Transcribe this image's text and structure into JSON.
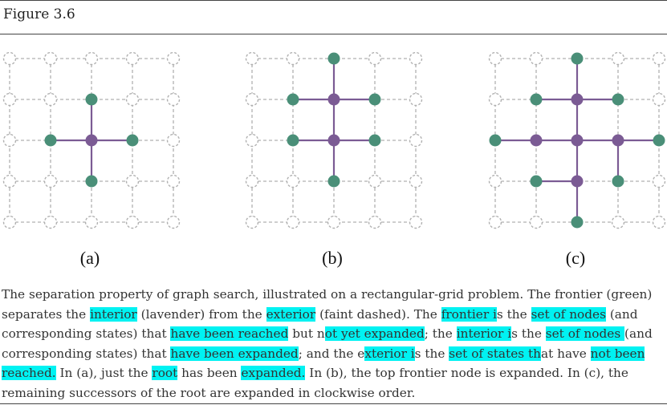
{
  "figure": {
    "title": "Figure 3.6",
    "panels": [
      {
        "label": "(a)",
        "reached_interior": [
          [
            2,
            2
          ]
        ],
        "frontier": [
          [
            2,
            1
          ],
          [
            1,
            2
          ],
          [
            3,
            2
          ],
          [
            2,
            3
          ]
        ],
        "edges": [
          [
            [
              2,
              2
            ],
            [
              2,
              1
            ]
          ],
          [
            [
              2,
              2
            ],
            [
              1,
              2
            ]
          ],
          [
            [
              2,
              2
            ],
            [
              3,
              2
            ]
          ],
          [
            [
              2,
              2
            ],
            [
              2,
              3
            ]
          ]
        ]
      },
      {
        "label": "(b)",
        "reached_interior": [
          [
            2,
            2
          ],
          [
            2,
            1
          ]
        ],
        "frontier": [
          [
            2,
            0
          ],
          [
            1,
            1
          ],
          [
            3,
            1
          ],
          [
            1,
            2
          ],
          [
            3,
            2
          ],
          [
            2,
            3
          ]
        ],
        "edges": [
          [
            [
              2,
              2
            ],
            [
              2,
              1
            ]
          ],
          [
            [
              2,
              2
            ],
            [
              1,
              2
            ]
          ],
          [
            [
              2,
              2
            ],
            [
              3,
              2
            ]
          ],
          [
            [
              2,
              2
            ],
            [
              2,
              3
            ]
          ],
          [
            [
              2,
              1
            ],
            [
              2,
              0
            ]
          ],
          [
            [
              2,
              1
            ],
            [
              1,
              1
            ]
          ],
          [
            [
              2,
              1
            ],
            [
              3,
              1
            ]
          ]
        ]
      },
      {
        "label": "(c)",
        "reached_interior": [
          [
            2,
            2
          ],
          [
            2,
            1
          ],
          [
            1,
            2
          ],
          [
            3,
            2
          ],
          [
            2,
            3
          ]
        ],
        "frontier": [
          [
            2,
            0
          ],
          [
            1,
            1
          ],
          [
            3,
            1
          ],
          [
            0,
            2
          ],
          [
            4,
            2
          ],
          [
            1,
            3
          ],
          [
            3,
            3
          ],
          [
            2,
            4
          ]
        ],
        "edges": [
          [
            [
              2,
              2
            ],
            [
              2,
              1
            ]
          ],
          [
            [
              2,
              2
            ],
            [
              1,
              2
            ]
          ],
          [
            [
              2,
              2
            ],
            [
              3,
              2
            ]
          ],
          [
            [
              2,
              2
            ],
            [
              2,
              3
            ]
          ],
          [
            [
              2,
              1
            ],
            [
              2,
              0
            ]
          ],
          [
            [
              2,
              1
            ],
            [
              1,
              1
            ]
          ],
          [
            [
              2,
              1
            ],
            [
              3,
              1
            ]
          ],
          [
            [
              1,
              2
            ],
            [
              0,
              2
            ]
          ],
          [
            [
              3,
              2
            ],
            [
              4,
              2
            ]
          ],
          [
            [
              3,
              2
            ],
            [
              3,
              3
            ]
          ],
          [
            [
              2,
              3
            ],
            [
              1,
              3
            ]
          ],
          [
            [
              2,
              3
            ],
            [
              2,
              4
            ]
          ]
        ]
      }
    ]
  },
  "caption": [
    {
      "t": "The separation property of graph search, illustrated on a rectangular-grid problem. The frontier (green) separates the "
    },
    {
      "t": "interior",
      "hl": true
    },
    {
      "t": " (lavender) from the "
    },
    {
      "t": "exterior",
      "hl": true
    },
    {
      "t": " (faint dashed). The "
    },
    {
      "t": "frontier i",
      "hl": true
    },
    {
      "t": "s the "
    },
    {
      "t": "set of nodes",
      "hl": true
    },
    {
      "t": " (and corresponding states) that "
    },
    {
      "t": "have been reached",
      "hl": true
    },
    {
      "t": " but n"
    },
    {
      "t": "ot yet expanded",
      "hl": true
    },
    {
      "t": "; the "
    },
    {
      "t": "interior i",
      "hl": true
    },
    {
      "t": "s the "
    },
    {
      "t": "set of nodes ",
      "hl": true
    },
    {
      "t": "(and corresponding states) that "
    },
    {
      "t": "have been expanded",
      "hl": true
    },
    {
      "t": "; and the e"
    },
    {
      "t": "xterior i",
      "hl": true
    },
    {
      "t": "s the "
    },
    {
      "t": "set of states th",
      "hl": true
    },
    {
      "t": "at have "
    },
    {
      "t": "not been reached.",
      "hl": true
    },
    {
      "t": " In (a), just the "
    },
    {
      "t": "root",
      "hl": true
    },
    {
      "t": " has been "
    },
    {
      "t": "expanded.",
      "hl": true
    },
    {
      "t": " In (b), the top frontier node is expanded. In (c), the remaining successors of the root are expanded in clockwise order."
    }
  ],
  "colors": {
    "frontier": "#4a8f78",
    "interior": "#7b5b94",
    "exterior": "#b0b0b0",
    "highlight": "#00f2f2"
  }
}
